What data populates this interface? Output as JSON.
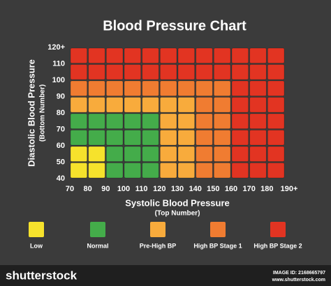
{
  "chart_data": {
    "type": "heatmap",
    "title": "Blood Pressure Chart",
    "x_label": "Systolic Blood Pressure",
    "x_sublabel": "(Top Number)",
    "y_label": "Diastolic Blood Pressure",
    "y_sublabel": "(Bottom Number)",
    "xlim": [
      70,
      190
    ],
    "xticks": [
      70,
      80,
      90,
      100,
      110,
      120,
      130,
      140,
      150,
      160,
      170,
      180,
      {
        "value": 190,
        "label": "190+"
      }
    ],
    "ylim": [
      40,
      120
    ],
    "yticks": [
      40,
      50,
      60,
      70,
      80,
      90,
      100,
      110,
      {
        "value": 120,
        "label": "120+"
      }
    ],
    "levels": [
      {
        "name": "Low",
        "color": "#f6e22c"
      },
      {
        "name": "Normal",
        "color": "#44ac4a"
      },
      {
        "name": "Pre-High BP",
        "color": "#f8ab3c"
      },
      {
        "name": "High BP Stage 1",
        "color": "#f07c31"
      },
      {
        "name": "High BP Stage 2",
        "color": "#e23422"
      }
    ],
    "cells": [
      [
        0,
        0,
        1,
        1,
        1,
        2,
        2,
        3,
        3,
        4,
        4,
        4
      ],
      [
        0,
        0,
        1,
        1,
        1,
        2,
        2,
        3,
        3,
        4,
        4,
        4
      ],
      [
        1,
        1,
        1,
        1,
        1,
        2,
        2,
        3,
        3,
        4,
        4,
        4
      ],
      [
        1,
        1,
        1,
        1,
        1,
        2,
        2,
        3,
        3,
        4,
        4,
        4
      ],
      [
        2,
        2,
        2,
        2,
        2,
        2,
        2,
        3,
        3,
        4,
        4,
        4
      ],
      [
        3,
        3,
        3,
        3,
        3,
        3,
        3,
        3,
        3,
        4,
        4,
        4
      ],
      [
        4,
        4,
        4,
        4,
        4,
        4,
        4,
        4,
        4,
        4,
        4,
        4
      ],
      [
        4,
        4,
        4,
        4,
        4,
        4,
        4,
        4,
        4,
        4,
        4,
        4
      ]
    ]
  },
  "footer": {
    "brand": "shutterstock",
    "image_id": "IMAGE ID: 2168665797",
    "site": "www.shutterstock.com"
  }
}
